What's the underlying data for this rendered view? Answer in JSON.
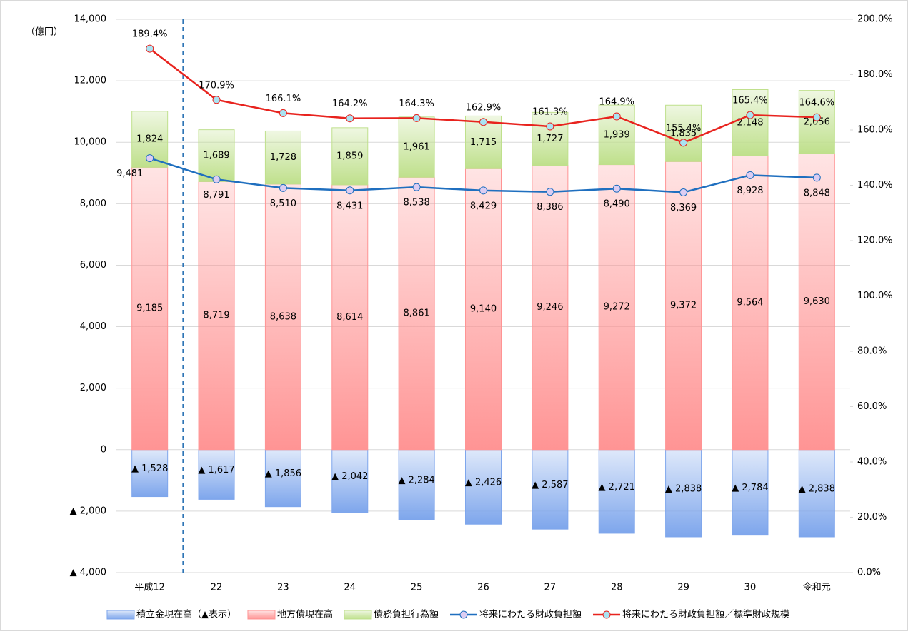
{
  "chart_data": {
    "type": "bar",
    "y_label": "（億円）",
    "categories": [
      "平成12",
      "22",
      "23",
      "24",
      "25",
      "26",
      "27",
      "28",
      "29",
      "30",
      "令和元"
    ],
    "ylim": [
      -4000,
      14000
    ],
    "yticks": [
      {
        "value": -4000,
        "label": "▲ 4,000"
      },
      {
        "value": -2000,
        "label": "▲ 2,000"
      },
      0,
      {
        "value": 2000,
        "label": "2,000"
      },
      {
        "value": 4000,
        "label": "4,000"
      },
      {
        "value": 6000,
        "label": "6,000"
      },
      {
        "value": 8000,
        "label": "8,000"
      },
      {
        "value": 10000,
        "label": "10,000"
      },
      {
        "value": 12000,
        "label": "12,000"
      },
      {
        "value": 14000,
        "label": "14,000"
      }
    ],
    "y2lim": [
      0,
      200
    ],
    "y2ticks": [
      {
        "value": 0,
        "label": "0.0%"
      },
      {
        "value": 20,
        "label": "20.0%"
      },
      {
        "value": 40,
        "label": "40.0%"
      },
      {
        "value": 60,
        "label": "60.0%"
      },
      {
        "value": 80,
        "label": "80.0%"
      },
      {
        "value": 100,
        "label": "100.0%"
      },
      {
        "value": 120,
        "label": "120.0%"
      },
      {
        "value": 140,
        "label": "140.0%"
      },
      {
        "value": 160,
        "label": "160.0%"
      },
      {
        "value": 180,
        "label": "180.0%"
      },
      {
        "value": 200,
        "label": "200.0%"
      }
    ],
    "grid": true,
    "legend": "bottom",
    "series": [
      {
        "name": "積立金現在高（▲表示）",
        "type": "bar",
        "color": "#7ea6ec",
        "values": [
          -1528,
          -1617,
          -1856,
          -2042,
          -2284,
          -2426,
          -2587,
          -2721,
          -2838,
          -2784,
          -2838
        ],
        "value_labels": [
          "▲ 1,528",
          "▲ 1,617",
          "▲ 1,856",
          "▲ 2,042",
          "▲ 2,284",
          "▲ 2,426",
          "▲ 2,587",
          "▲ 2,721",
          "▲ 2,838",
          "▲ 2,784",
          "▲ 2,838"
        ]
      },
      {
        "name": "地方債現在高",
        "type": "bar",
        "color": "#ff9494",
        "values": [
          9185,
          8719,
          8638,
          8614,
          8861,
          9140,
          9246,
          9272,
          9372,
          9564,
          9630
        ],
        "value_labels": [
          "9,185",
          "8,719",
          "8,638",
          "8,614",
          "8,861",
          "9,140",
          "9,246",
          "9,272",
          "9,372",
          "9,564",
          "9,630"
        ]
      },
      {
        "name": "債務負担行為額",
        "type": "bar",
        "color": "#bfe08c",
        "values": [
          1824,
          1689,
          1728,
          1859,
          1961,
          1715,
          1727,
          1939,
          1835,
          2148,
          2056
        ],
        "value_labels": [
          "1,824",
          "1,689",
          "1,728",
          "1,859",
          "1,961",
          "1,715",
          "1,727",
          "1,939",
          "1,835",
          "2,148",
          "2,056"
        ]
      },
      {
        "name": "将来にわたる財政負担額",
        "type": "line",
        "color": "#1f6fbf",
        "marker_color": "#dccdf2",
        "values": [
          9481,
          8791,
          8510,
          8431,
          8538,
          8429,
          8386,
          8490,
          8369,
          8928,
          8848
        ],
        "value_labels": [
          "9,481",
          "8,791",
          "8,510",
          "8,431",
          "8,538",
          "8,429",
          "8,386",
          "8,490",
          "8,369",
          "8,928",
          "8,848"
        ]
      },
      {
        "name": "将来にわたる財政負担額／標準財政規模",
        "type": "line",
        "axis": "y2",
        "color": "#e8231e",
        "marker_color": "#a9e3f2",
        "values": [
          189.4,
          170.9,
          166.1,
          164.2,
          164.3,
          162.9,
          161.3,
          164.9,
          155.4,
          165.4,
          164.6
        ],
        "value_labels": [
          "189.4%",
          "170.9%",
          "166.1%",
          "164.2%",
          "164.3%",
          "162.9%",
          "161.3%",
          "164.9%",
          "155.4%",
          "165.4%",
          "164.6%"
        ]
      }
    ]
  }
}
